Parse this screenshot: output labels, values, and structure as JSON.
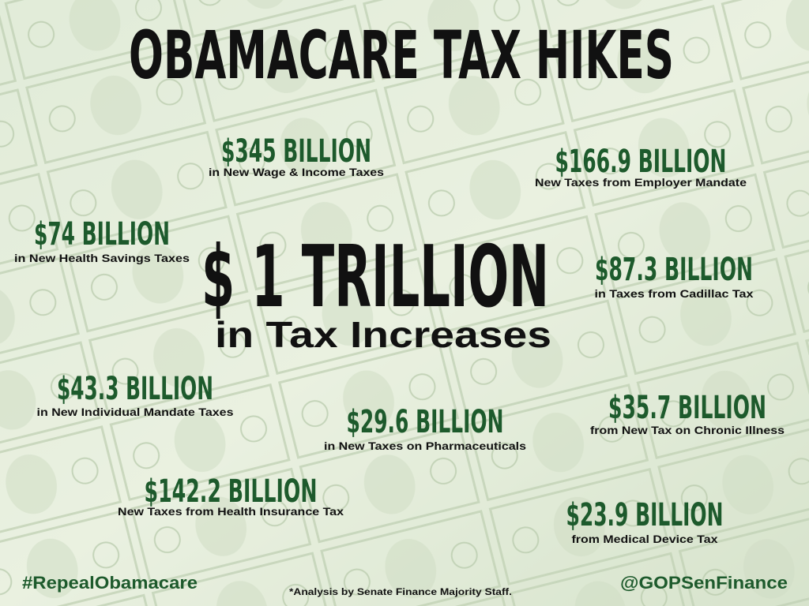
{
  "title": "OBAMACARE TAX HIKES",
  "headline": {
    "amount": "$ 1 TRILLION",
    "caption": "in Tax Increases"
  },
  "items": [
    {
      "amount": "$345 BILLION",
      "description": "in New Wage & Income Taxes"
    },
    {
      "amount": "$166.9 BILLION",
      "description": "New Taxes from Employer Mandate"
    },
    {
      "amount": "$74 BILLION",
      "description": "in New Health Savings Taxes"
    },
    {
      "amount": "$87.3 BILLION",
      "description": "in Taxes from Cadillac Tax"
    },
    {
      "amount": "$43.3 BILLION",
      "description": "in New Individual Mandate Taxes"
    },
    {
      "amount": "$29.6 BILLION",
      "description": "in New Taxes on Pharmaceuticals"
    },
    {
      "amount": "$35.7 BILLION",
      "description": "from New Tax on Chronic Illness"
    },
    {
      "amount": "$142.2 BILLION",
      "description": "New Taxes from Health Insurance Tax"
    },
    {
      "amount": "$23.9 BILLION",
      "description": "from Medical Device Tax"
    }
  ],
  "footer": {
    "hashtag": "#RepealObamacare",
    "note": "*Analysis by Senate Finance Majority Staff.",
    "handle": "@GOPSenFinance"
  }
}
